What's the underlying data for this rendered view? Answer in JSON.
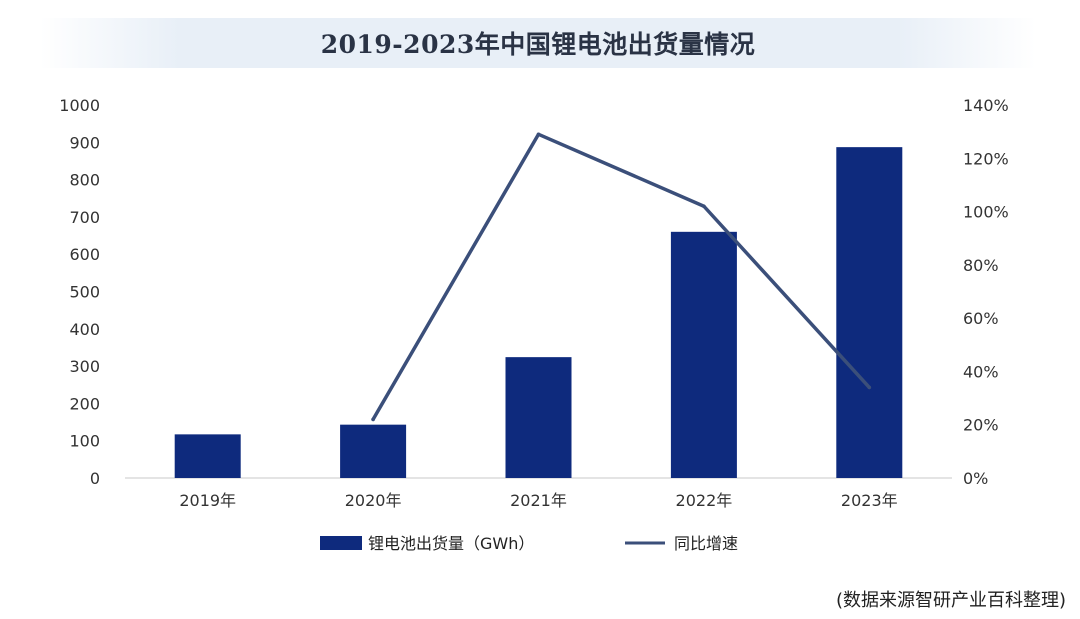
{
  "chart_data": {
    "type": "bar",
    "title": "2019-2023年中国锂电池出货量情况",
    "categories": [
      "2019年",
      "2020年",
      "2021年",
      "2022年",
      "2023年"
    ],
    "series": [
      {
        "name": "锂电池出货量（GWh）",
        "type": "bar",
        "axis": "left",
        "color": "#0e2a7d",
        "values": [
          117,
          143,
          324,
          660,
          887
        ]
      },
      {
        "name": "同比增速",
        "type": "line",
        "axis": "right",
        "color": "#3b4f7a",
        "values": [
          null,
          22,
          129,
          102,
          34
        ]
      }
    ],
    "y_left": {
      "min": 0,
      "max": 1000,
      "step": 100,
      "ticks": [
        "0",
        "100",
        "200",
        "300",
        "400",
        "500",
        "600",
        "700",
        "800",
        "900",
        "1000"
      ]
    },
    "y_right": {
      "min": 0,
      "max": 140,
      "step": 20,
      "ticks": [
        "0%",
        "20%",
        "40%",
        "60%",
        "80%",
        "100%",
        "120%",
        "140%"
      ]
    },
    "legend_position": "bottom",
    "grid": false
  },
  "source_note": "(数据来源智研产业百科整理)"
}
